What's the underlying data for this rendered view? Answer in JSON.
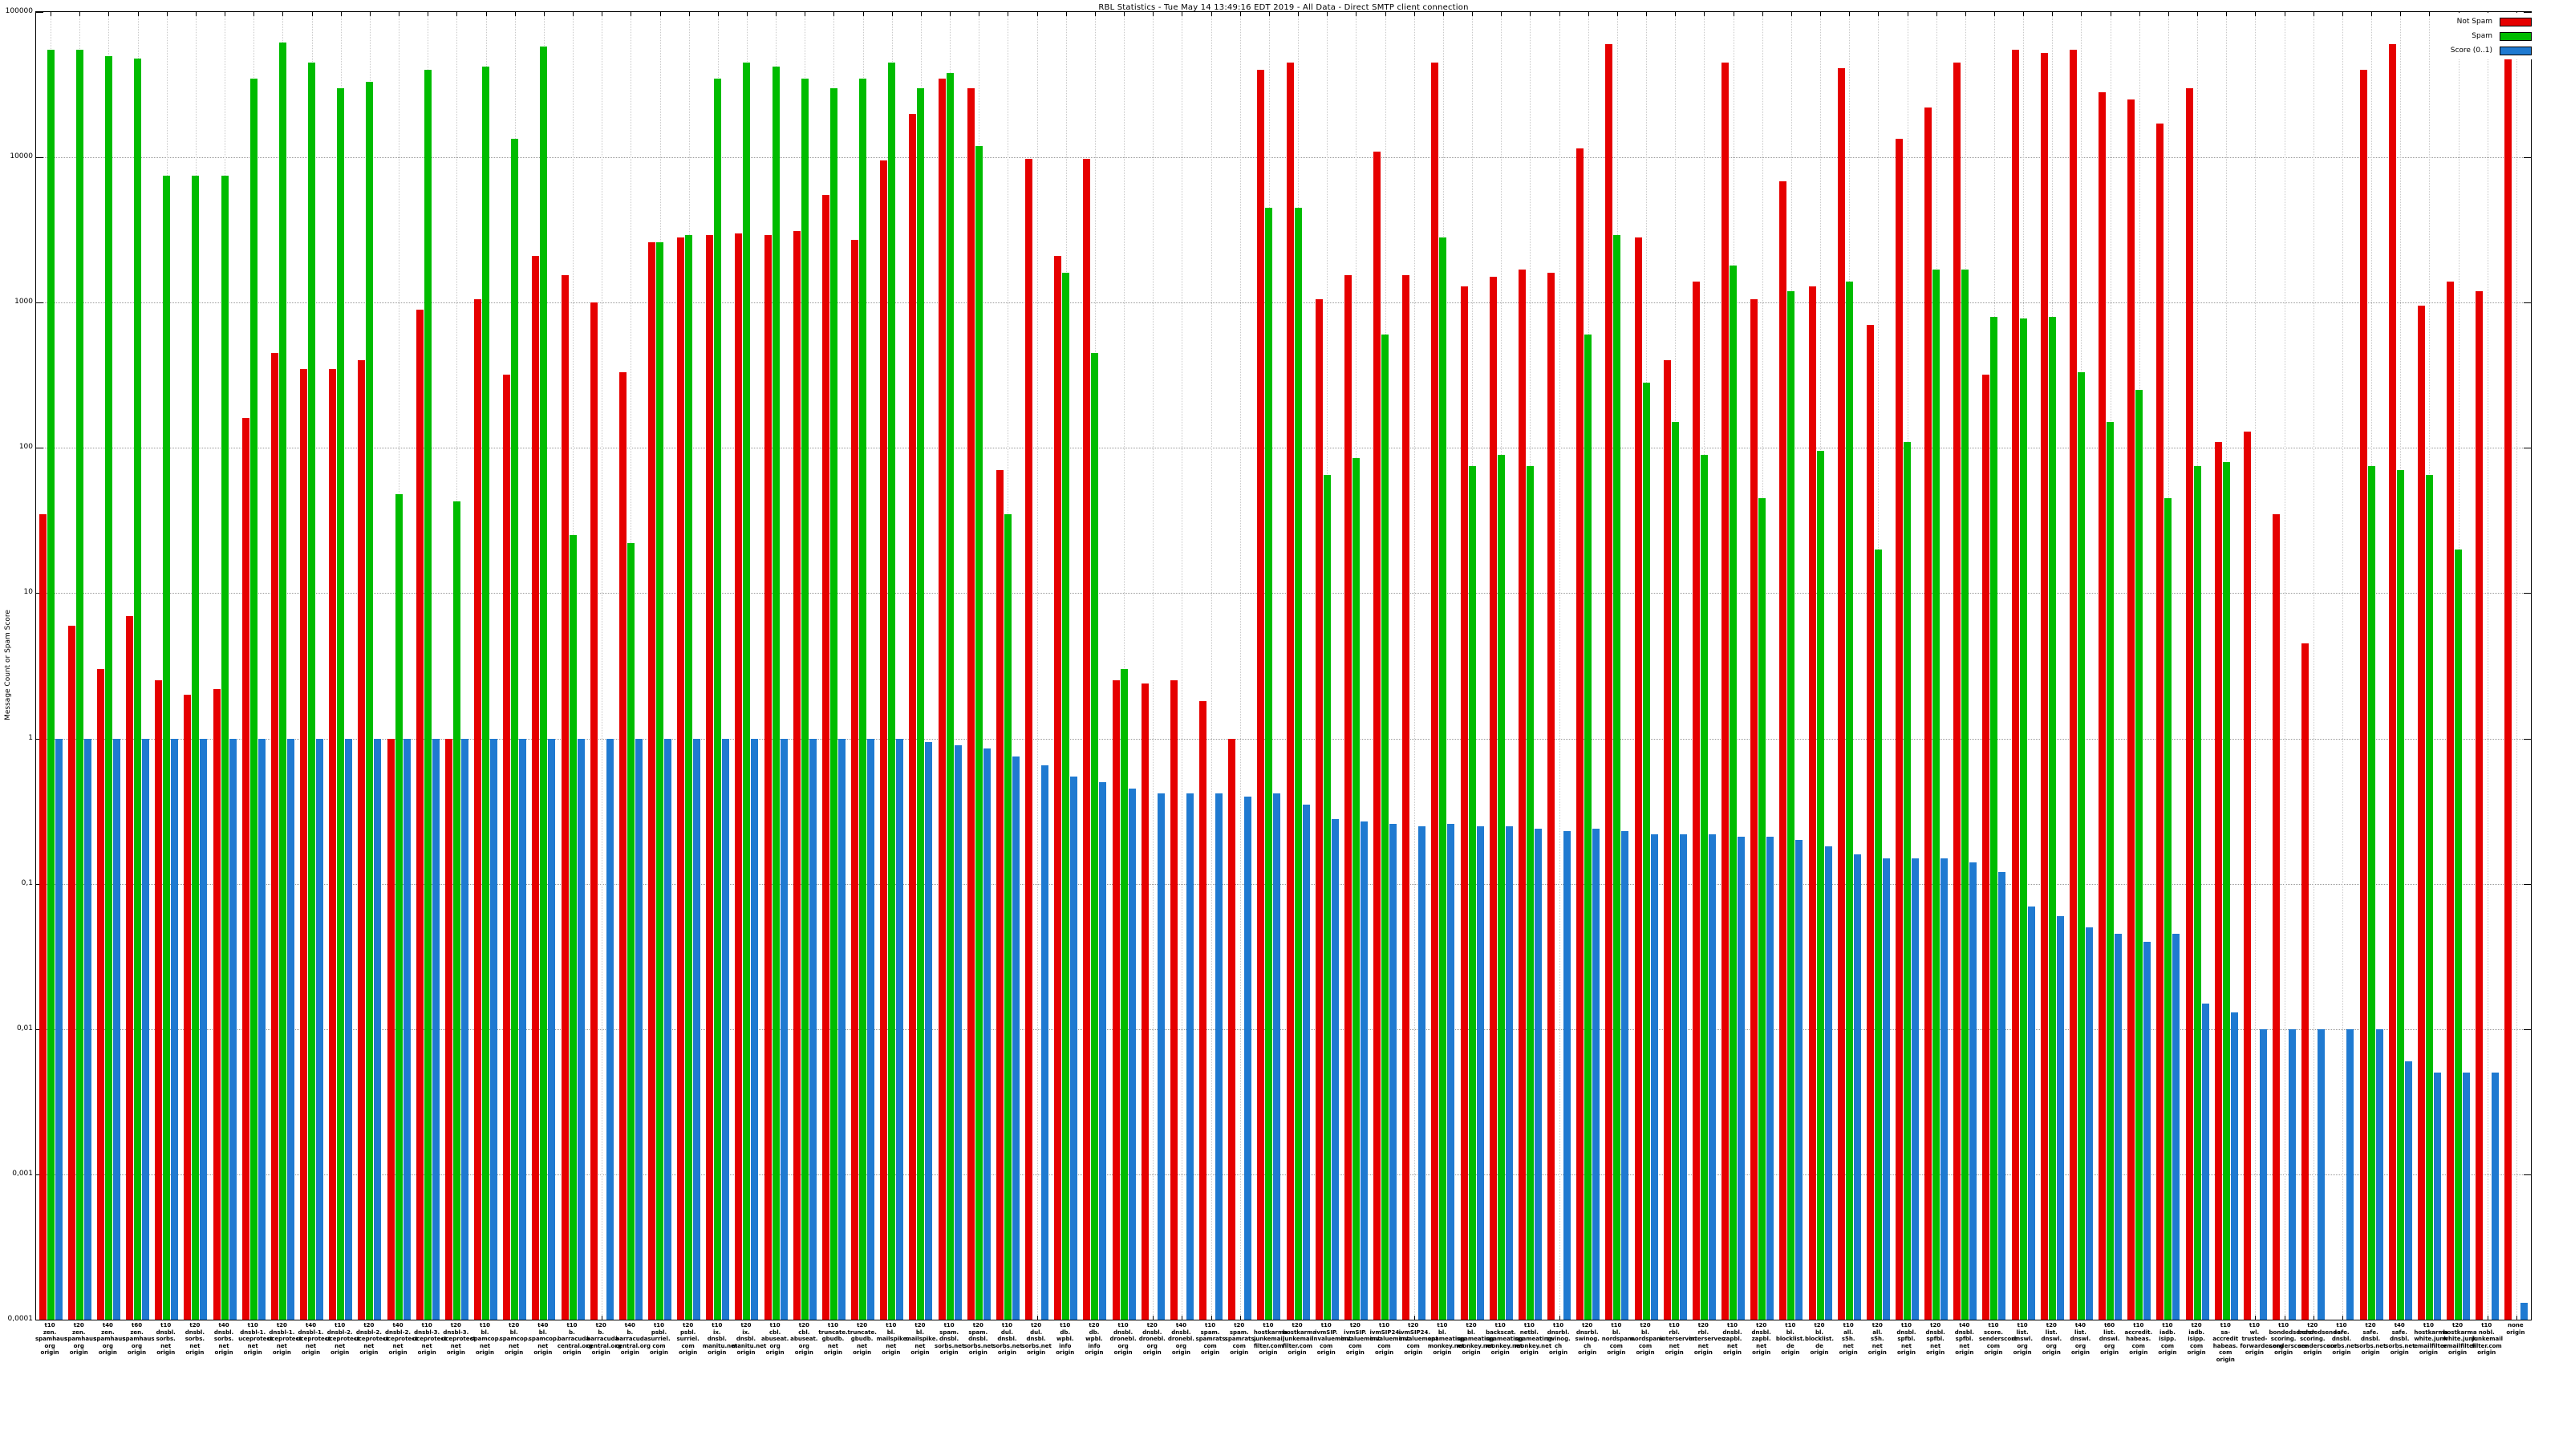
{
  "chart_data": {
    "type": "bar",
    "title": "RBL Statistics - Tue May 14 13:49:16 EDT 2019 - All Data - Direct SMTP client connection",
    "ylabel": "Message Count or Spam Score",
    "xlabel": "",
    "scale": "log",
    "ylim": [
      0.0001,
      100000
    ],
    "y_ticks": [
      "100000",
      "10000",
      "1000",
      "100",
      "10",
      "1",
      "0,1",
      "0,01",
      "0,001",
      "0,0001"
    ],
    "grid": true,
    "legend_position": "top-right",
    "legend": [
      {
        "label": "Not Spam",
        "color": "#e60000"
      },
      {
        "label": "Spam",
        "color": "#00bc00"
      },
      {
        "label": "Score (0..1)",
        "color": "#1f7ad1"
      }
    ],
    "categories": [
      [
        "t10",
        "zen.",
        "spamhaus",
        "org",
        "origin"
      ],
      [
        "t20",
        "zen.",
        "spamhaus",
        "org",
        "origin"
      ],
      [
        "t40",
        "zen.",
        "spamhaus",
        "org",
        "origin"
      ],
      [
        "t60",
        "zen.",
        "spamhaus",
        "org",
        "origin"
      ],
      [
        "t10",
        "dnsbl.",
        "sorbs.",
        "net",
        "origin"
      ],
      [
        "t20",
        "dnsbl.",
        "sorbs.",
        "net",
        "origin"
      ],
      [
        "t40",
        "dnsbl.",
        "sorbs.",
        "net",
        "origin"
      ],
      [
        "t10",
        "dnsbl-1.",
        "uceprotect",
        "net",
        "origin"
      ],
      [
        "t20",
        "dnsbl-1.",
        "uceprotect",
        "net",
        "origin"
      ],
      [
        "t40",
        "dnsbl-1.",
        "uceprotect",
        "net",
        "origin"
      ],
      [
        "t10",
        "dnsbl-2.",
        "uceprotect",
        "net",
        "origin"
      ],
      [
        "t20",
        "dnsbl-2.",
        "uceprotect",
        "net",
        "origin"
      ],
      [
        "t40",
        "dnsbl-2.",
        "uceprotect",
        "net",
        "origin"
      ],
      [
        "t10",
        "dnsbl-3.",
        "uceprotect",
        "net",
        "origin"
      ],
      [
        "t20",
        "dnsbl-3.",
        "uceprotect",
        "net",
        "origin"
      ],
      [
        "t10",
        "bl.",
        "spamcop.",
        "net",
        "origin"
      ],
      [
        "t20",
        "bl.",
        "spamcop.",
        "net",
        "origin"
      ],
      [
        "t40",
        "bl.",
        "spamcop.",
        "net",
        "origin"
      ],
      [
        "t10",
        "b.",
        "barracuda",
        "central.org",
        "origin"
      ],
      [
        "t20",
        "b.",
        "barracuda",
        "central.org",
        "origin"
      ],
      [
        "t40",
        "b.",
        "barracuda",
        "central.org",
        "origin"
      ],
      [
        "t10",
        "psbl.",
        "surriel.",
        "com",
        "origin"
      ],
      [
        "t20",
        "psbl.",
        "surriel.",
        "com",
        "origin"
      ],
      [
        "t10",
        "ix.",
        "dnsbl.",
        "manitu.net",
        "origin"
      ],
      [
        "t20",
        "ix.",
        "dnsbl.",
        "manitu.net",
        "origin"
      ],
      [
        "t10",
        "cbl.",
        "abuseat.",
        "org",
        "origin"
      ],
      [
        "t20",
        "cbl.",
        "abuseat.",
        "org",
        "origin"
      ],
      [
        "t10",
        "truncate.",
        "gbudb.",
        "net",
        "origin"
      ],
      [
        "t20",
        "truncate.",
        "gbudb.",
        "net",
        "origin"
      ],
      [
        "t10",
        "bl.",
        "mailspike.",
        "net",
        "origin"
      ],
      [
        "t20",
        "bl.",
        "mailspike.",
        "net",
        "origin"
      ],
      [
        "t10",
        "spam.",
        "dnsbl.",
        "sorbs.net",
        "origin"
      ],
      [
        "t20",
        "spam.",
        "dnsbl.",
        "sorbs.net",
        "origin"
      ],
      [
        "t10",
        "dul.",
        "dnsbl.",
        "sorbs.net",
        "origin"
      ],
      [
        "t20",
        "dul.",
        "dnsbl.",
        "sorbs.net",
        "origin"
      ],
      [
        "t10",
        "db.",
        "wpbl.",
        "info",
        "origin"
      ],
      [
        "t20",
        "db.",
        "wpbl.",
        "info",
        "origin"
      ],
      [
        "t10",
        "dnsbl.",
        "dronebl.",
        "org",
        "origin"
      ],
      [
        "t20",
        "dnsbl.",
        "dronebl.",
        "org",
        "origin"
      ],
      [
        "t40",
        "dnsbl.",
        "dronebl.",
        "org",
        "origin"
      ],
      [
        "t10",
        "spam.",
        "spamrats.",
        "com",
        "origin"
      ],
      [
        "t20",
        "spam.",
        "spamrats.",
        "com",
        "origin"
      ],
      [
        "t10",
        "hostkarma",
        "junkemail",
        "filter.com",
        "origin"
      ],
      [
        "t20",
        "hostkarma",
        "junkemail",
        "filter.com",
        "origin"
      ],
      [
        "t10",
        "ivmSIP.",
        "invaluement",
        "com",
        "origin"
      ],
      [
        "t20",
        "ivmSIP.",
        "invaluement",
        "com",
        "origin"
      ],
      [
        "t10",
        "ivmSIP24.",
        "invaluement",
        "com",
        "origin"
      ],
      [
        "t20",
        "ivmSIP24.",
        "invaluement",
        "com",
        "origin"
      ],
      [
        "t10",
        "bl.",
        "spameating",
        "monkey.net",
        "origin"
      ],
      [
        "t20",
        "bl.",
        "spameating",
        "monkey.net",
        "origin"
      ],
      [
        "t10",
        "backscat.",
        "spameating",
        "monkey.net",
        "origin"
      ],
      [
        "t10",
        "netbl.",
        "spameating",
        "monkey.net",
        "origin"
      ],
      [
        "t10",
        "dnsrbl.",
        "swinog.",
        "ch",
        "origin"
      ],
      [
        "t20",
        "dnsrbl.",
        "swinog.",
        "ch",
        "origin"
      ],
      [
        "t10",
        "bl.",
        "nordspam.",
        "com",
        "origin"
      ],
      [
        "t20",
        "bl.",
        "nordspam.",
        "com",
        "origin"
      ],
      [
        "t10",
        "rbl.",
        "interserver.",
        "net",
        "origin"
      ],
      [
        "t20",
        "rbl.",
        "interserver.",
        "net",
        "origin"
      ],
      [
        "t10",
        "dnsbl.",
        "zapbl.",
        "net",
        "origin"
      ],
      [
        "t20",
        "dnsbl.",
        "zapbl.",
        "net",
        "origin"
      ],
      [
        "t10",
        "bl.",
        "blocklist.",
        "de",
        "origin"
      ],
      [
        "t20",
        "bl.",
        "blocklist.",
        "de",
        "origin"
      ],
      [
        "t10",
        "all.",
        "s5h.",
        "net",
        "origin"
      ],
      [
        "t20",
        "all.",
        "s5h.",
        "net",
        "origin"
      ],
      [
        "t10",
        "dnsbl.",
        "spfbl.",
        "net",
        "origin"
      ],
      [
        "t20",
        "dnsbl.",
        "spfbl.",
        "net",
        "origin"
      ],
      [
        "t40",
        "dnsbl.",
        "spfbl.",
        "net",
        "origin"
      ],
      [
        "t10",
        "score.",
        "senderscore",
        "com",
        "origin"
      ],
      [
        "t10",
        "list.",
        "dnswl.",
        "org",
        "origin"
      ],
      [
        "t20",
        "list.",
        "dnswl.",
        "org",
        "origin"
      ],
      [
        "t40",
        "list.",
        "dnswl.",
        "org",
        "origin"
      ],
      [
        "t60",
        "list.",
        "dnswl.",
        "org",
        "origin"
      ],
      [
        "t10",
        "accredit.",
        "habeas.",
        "com",
        "origin"
      ],
      [
        "t10",
        "iadb.",
        "isipp.",
        "com",
        "origin"
      ],
      [
        "t20",
        "iadb.",
        "isipp.",
        "com",
        "origin"
      ],
      [
        "t10",
        "sa-accredit",
        "habeas.",
        "com",
        "origin"
      ],
      [
        "t10",
        "wl.",
        "trusted-",
        "forwarder.org",
        "origin"
      ],
      [
        "t10",
        "bondedsender",
        "scoring.",
        "senderscore",
        "origin"
      ],
      [
        "t20",
        "bondedsender",
        "scoring.",
        "senderscore",
        "origin"
      ],
      [
        "t10",
        "safe.",
        "dnsbl.",
        "sorbs.net",
        "origin"
      ],
      [
        "t20",
        "safe.",
        "dnsbl.",
        "sorbs.net",
        "origin"
      ],
      [
        "t40",
        "safe.",
        "dnsbl.",
        "sorbs.net",
        "origin"
      ],
      [
        "t10",
        "hostkarma",
        "white.junk",
        "emailfilter",
        "origin"
      ],
      [
        "t20",
        "hostkarma",
        "white.junk",
        "emailfilter",
        "origin"
      ],
      [
        "t10",
        "nobl.",
        "junkemail",
        "filter.com",
        "origin"
      ],
      [
        "none",
        "origin"
      ]
    ],
    "series": [
      {
        "name": "Not Spam",
        "color": "#e60000",
        "values": [
          35,
          6,
          3,
          7,
          2.5,
          2,
          2.2,
          160,
          450,
          350,
          350,
          400,
          1,
          900,
          1,
          1050,
          320,
          2100,
          1550,
          1000,
          330,
          2600,
          2800,
          2900,
          3000,
          2900,
          3100,
          5500,
          2700,
          9500,
          20000,
          35000,
          30000,
          70,
          9800,
          2100,
          9800,
          2.5,
          2.4,
          2.5,
          1.8,
          1,
          40000,
          45000,
          1050,
          1550,
          11000,
          1550,
          45000,
          1300,
          1500,
          1700,
          1600,
          11500,
          60000,
          2800,
          400,
          1400,
          45000,
          1050,
          6800,
          1300,
          41000,
          700,
          13500,
          22000,
          45000,
          320,
          55000,
          52000,
          55000,
          28000,
          25000,
          17000,
          30000,
          110,
          130,
          35,
          4.5,
          null,
          40000,
          60000,
          950,
          1400,
          1200,
          60000
        ]
      },
      {
        "name": "Spam",
        "color": "#00bc00",
        "values": [
          55000,
          55000,
          50000,
          48000,
          7500,
          7500,
          7500,
          35000,
          62000,
          45000,
          30000,
          33000,
          48,
          40000,
          43,
          42000,
          13500,
          58000,
          25,
          null,
          22,
          2600,
          2900,
          35000,
          45000,
          42000,
          35000,
          30000,
          35000,
          45000,
          30000,
          38000,
          12000,
          35,
          null,
          1600,
          450,
          3,
          null,
          null,
          null,
          null,
          4500,
          4500,
          65,
          85,
          600,
          null,
          2800,
          75,
          90,
          75,
          null,
          600,
          2900,
          280,
          150,
          90,
          1800,
          45,
          1200,
          95,
          1400,
          20,
          110,
          1700,
          1700,
          800,
          780,
          800,
          330,
          150,
          250,
          45,
          75,
          80,
          null,
          null,
          null,
          null,
          75,
          70,
          65,
          20,
          null,
          null
        ]
      },
      {
        "name": "Score (0..1)",
        "color": "#1f7ad1",
        "values": [
          1,
          1,
          1,
          1,
          1,
          1,
          1,
          1,
          1,
          1,
          1,
          1,
          1,
          1,
          1,
          1,
          1,
          1,
          1,
          1,
          1,
          1,
          1,
          1,
          1,
          1,
          1,
          1,
          1,
          1,
          0.95,
          0.9,
          0.85,
          0.75,
          0.65,
          0.55,
          0.5,
          0.45,
          0.42,
          0.42,
          0.42,
          0.4,
          0.42,
          0.35,
          0.28,
          0.27,
          0.26,
          0.25,
          0.26,
          0.25,
          0.25,
          0.24,
          0.23,
          0.24,
          0.23,
          0.22,
          0.22,
          0.22,
          0.21,
          0.21,
          0.2,
          0.18,
          0.16,
          0.15,
          0.15,
          0.15,
          0.14,
          0.12,
          0.07,
          0.06,
          0.05,
          0.045,
          0.04,
          0.045,
          0.015,
          0.013,
          0.01,
          0.01,
          0.01,
          0.01,
          0.01,
          0.006,
          0.005,
          0.005,
          0.005,
          0.00013
        ]
      }
    ]
  }
}
